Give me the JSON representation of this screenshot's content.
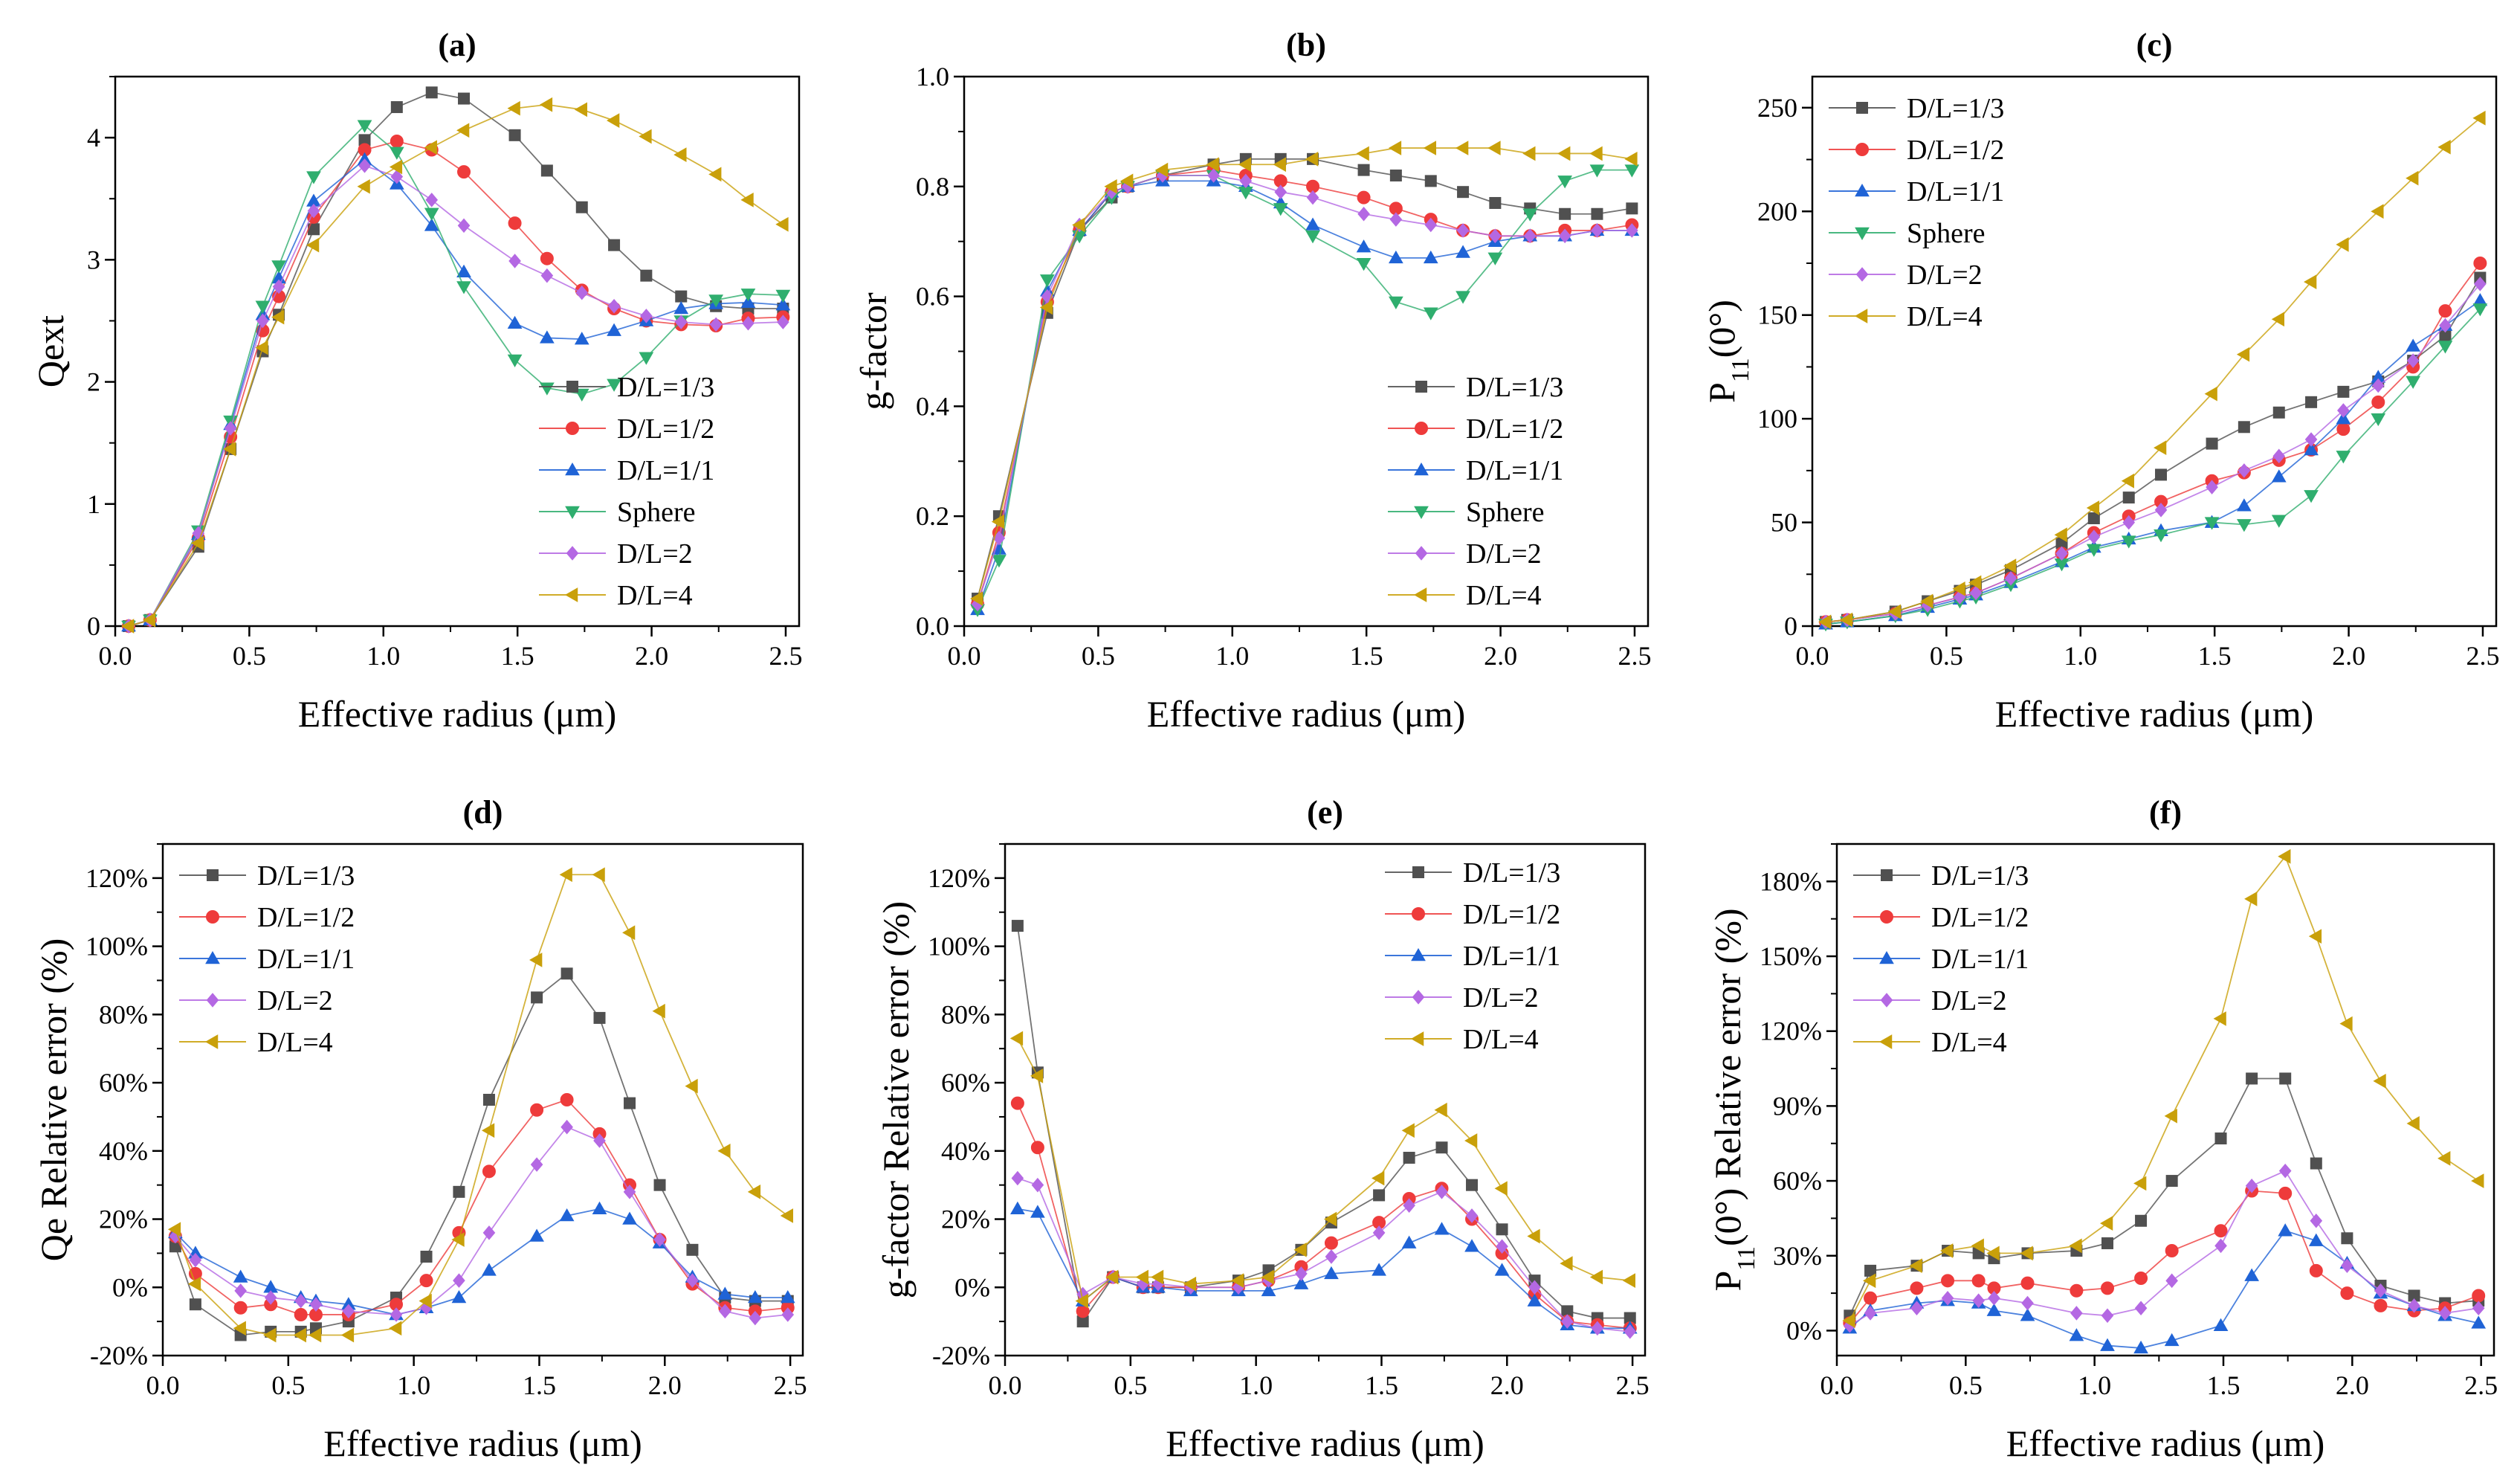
{
  "chart_data": [
    {
      "panel": "(a)",
      "type": "line",
      "xlabel": "Effective radius (μm)",
      "ylabel": "Qext",
      "xlim": [
        0,
        2.55
      ],
      "ylim": [
        0,
        4.5
      ],
      "xticks": [
        "0.0",
        "0.5",
        "1.0",
        "1.5",
        "2.0",
        "2.5"
      ],
      "yticks": [
        "0",
        "1",
        "2",
        "3",
        "4"
      ],
      "legend_position": "bottom-right",
      "x": [
        0.05,
        0.13,
        0.31,
        0.43,
        0.55,
        0.61,
        0.74,
        0.93,
        1.05,
        1.18,
        1.3,
        1.49,
        1.61,
        1.74,
        1.86,
        1.98,
        2.11,
        2.24,
        2.36,
        2.49
      ],
      "series": [
        {
          "name": "D/L=1/3",
          "values": [
            0.0,
            0.05,
            0.65,
            1.45,
            2.25,
            2.55,
            3.25,
            3.98,
            4.25,
            4.37,
            4.32,
            4.02,
            3.73,
            3.43,
            3.12,
            2.87,
            2.7,
            2.62,
            2.6,
            2.6
          ]
        },
        {
          "name": "D/L=1/2",
          "values": [
            0.0,
            0.05,
            0.72,
            1.55,
            2.42,
            2.7,
            3.35,
            3.9,
            3.97,
            3.9,
            3.72,
            3.3,
            3.01,
            2.75,
            2.6,
            2.5,
            2.47,
            2.46,
            2.52,
            2.53
          ]
        },
        {
          "name": "D/L=1/1",
          "values": [
            0.0,
            0.05,
            0.75,
            1.65,
            2.55,
            2.85,
            3.48,
            3.82,
            3.62,
            3.28,
            2.9,
            2.48,
            2.36,
            2.35,
            2.42,
            2.5,
            2.6,
            2.64,
            2.65,
            2.63
          ]
        },
        {
          "name": "Sphere",
          "values": [
            0.0,
            0.05,
            0.78,
            1.68,
            2.62,
            2.95,
            3.68,
            4.1,
            3.88,
            3.38,
            2.78,
            2.18,
            1.95,
            1.9,
            1.98,
            2.2,
            2.5,
            2.67,
            2.72,
            2.71
          ]
        },
        {
          "name": "D/L=2",
          "values": [
            0.0,
            0.05,
            0.76,
            1.62,
            2.5,
            2.78,
            3.4,
            3.77,
            3.68,
            3.49,
            3.28,
            2.99,
            2.87,
            2.73,
            2.62,
            2.54,
            2.49,
            2.47,
            2.48,
            2.49
          ]
        },
        {
          "name": "D/L=4",
          "values": [
            0.0,
            0.05,
            0.68,
            1.45,
            2.28,
            2.53,
            3.12,
            3.6,
            3.76,
            3.92,
            4.06,
            4.24,
            4.27,
            4.23,
            4.14,
            4.01,
            3.86,
            3.7,
            3.49,
            3.29
          ]
        }
      ]
    },
    {
      "panel": "(b)",
      "type": "line",
      "xlabel": "Effective radius (μm)",
      "ylabel": "g-factor",
      "xlim": [
        0,
        2.55
      ],
      "ylim": [
        0,
        1.0
      ],
      "xticks": [
        "0.0",
        "0.5",
        "1.0",
        "1.5",
        "2.0",
        "2.5"
      ],
      "yticks": [
        "0.0",
        "0.2",
        "0.4",
        "0.6",
        "0.8",
        "1.0"
      ],
      "legend_position": "bottom-right",
      "x": [
        0.05,
        0.13,
        0.31,
        0.43,
        0.55,
        0.61,
        0.74,
        0.93,
        1.05,
        1.18,
        1.3,
        1.49,
        1.61,
        1.74,
        1.86,
        1.98,
        2.11,
        2.24,
        2.36,
        2.49
      ],
      "series": [
        {
          "name": "D/L=1/3",
          "values": [
            0.05,
            0.2,
            0.57,
            0.72,
            0.78,
            0.8,
            0.82,
            0.84,
            0.85,
            0.85,
            0.85,
            0.83,
            0.82,
            0.81,
            0.79,
            0.77,
            0.76,
            0.75,
            0.75,
            0.76
          ]
        },
        {
          "name": "D/L=1/2",
          "values": [
            0.04,
            0.17,
            0.59,
            0.72,
            0.79,
            0.8,
            0.82,
            0.83,
            0.82,
            0.81,
            0.8,
            0.78,
            0.76,
            0.74,
            0.72,
            0.71,
            0.71,
            0.72,
            0.72,
            0.73
          ]
        },
        {
          "name": "D/L=1/1",
          "values": [
            0.03,
            0.14,
            0.61,
            0.72,
            0.79,
            0.8,
            0.81,
            0.81,
            0.8,
            0.77,
            0.73,
            0.69,
            0.67,
            0.67,
            0.68,
            0.7,
            0.71,
            0.71,
            0.72,
            0.72
          ]
        },
        {
          "name": "Sphere",
          "values": [
            0.03,
            0.12,
            0.63,
            0.71,
            0.78,
            0.8,
            0.82,
            0.82,
            0.79,
            0.76,
            0.71,
            0.66,
            0.59,
            0.57,
            0.6,
            0.67,
            0.75,
            0.81,
            0.83,
            0.83
          ]
        },
        {
          "name": "D/L=2",
          "values": [
            0.04,
            0.16,
            0.6,
            0.73,
            0.79,
            0.8,
            0.82,
            0.82,
            0.81,
            0.79,
            0.78,
            0.75,
            0.74,
            0.73,
            0.72,
            0.71,
            0.71,
            0.71,
            0.72,
            0.72
          ]
        },
        {
          "name": "D/L=4",
          "values": [
            0.05,
            0.19,
            0.58,
            0.73,
            0.8,
            0.81,
            0.83,
            0.84,
            0.84,
            0.84,
            0.85,
            0.86,
            0.87,
            0.87,
            0.87,
            0.87,
            0.86,
            0.86,
            0.86,
            0.85
          ]
        }
      ]
    },
    {
      "panel": "(c)",
      "type": "line",
      "xlabel": "Effective radius (μm)",
      "ylabel": "P",
      "ylabel_sub": "11",
      "ylabel_tail": "(0°)",
      "xlim": [
        0,
        2.55
      ],
      "ylim": [
        0,
        265
      ],
      "xticks": [
        "0.0",
        "0.5",
        "1.0",
        "1.5",
        "2.0",
        "2.5"
      ],
      "yticks": [
        "0",
        "50",
        "100",
        "150",
        "200",
        "250"
      ],
      "legend_position": "top-left",
      "x": [
        0.05,
        0.13,
        0.31,
        0.43,
        0.55,
        0.61,
        0.74,
        0.93,
        1.05,
        1.18,
        1.3,
        1.49,
        1.61,
        1.74,
        1.86,
        1.98,
        2.11,
        2.24,
        2.36,
        2.49
      ],
      "series": [
        {
          "name": "D/L=1/3",
          "values": [
            2,
            3,
            7,
            12,
            17,
            20,
            27,
            40,
            52,
            62,
            73,
            88,
            96,
            103,
            108,
            113,
            118,
            128,
            140,
            168
          ]
        },
        {
          "name": "D/L=1/2",
          "values": [
            2,
            3,
            6,
            10,
            14,
            16,
            23,
            35,
            45,
            53,
            60,
            70,
            74,
            80,
            85,
            95,
            108,
            125,
            152,
            175
          ]
        },
        {
          "name": "D/L=1/1",
          "values": [
            1,
            2,
            5,
            9,
            13,
            15,
            21,
            31,
            38,
            42,
            46,
            50,
            58,
            72,
            85,
            100,
            120,
            135,
            145,
            157
          ]
        },
        {
          "name": "Sphere",
          "values": [
            1,
            2,
            5,
            8,
            12,
            14,
            20,
            30,
            37,
            41,
            44,
            50,
            49,
            51,
            63,
            82,
            100,
            118,
            135,
            153
          ]
        },
        {
          "name": "D/L=2",
          "values": [
            2,
            3,
            6,
            10,
            14,
            16,
            23,
            35,
            43,
            50,
            56,
            67,
            75,
            82,
            90,
            104,
            116,
            128,
            145,
            165
          ]
        },
        {
          "name": "D/L=4",
          "values": [
            2,
            3,
            7,
            12,
            18,
            21,
            29,
            44,
            57,
            70,
            86,
            112,
            131,
            148,
            166,
            184,
            200,
            216,
            231,
            245
          ]
        }
      ]
    },
    {
      "panel": "(d)",
      "type": "line",
      "xlabel": "Effective radius (μm)",
      "ylabel": "Qe Relative error (%)",
      "xlim": [
        0,
        2.55
      ],
      "ylim": [
        -20,
        130
      ],
      "xticks": [
        "0.0",
        "0.5",
        "1.0",
        "1.5",
        "2.0",
        "2.5"
      ],
      "yticks": [
        "-20%",
        "0%",
        "20%",
        "40%",
        "60%",
        "80%",
        "100%",
        "120%"
      ],
      "legend_position": "top-left",
      "x": [
        0.05,
        0.13,
        0.31,
        0.43,
        0.55,
        0.61,
        0.74,
        0.93,
        1.05,
        1.18,
        1.3,
        1.49,
        1.61,
        1.74,
        1.86,
        1.98,
        2.11,
        2.24,
        2.36,
        2.49
      ],
      "series": [
        {
          "name": "D/L=1/3",
          "values": [
            12,
            -5,
            -14,
            -13,
            -13,
            -12,
            -10,
            -3,
            9,
            28,
            55,
            85,
            92,
            79,
            54,
            30,
            11,
            -3,
            -4,
            -4
          ]
        },
        {
          "name": "D/L=1/2",
          "values": [
            15,
            4,
            -6,
            -5,
            -8,
            -8,
            -8,
            -5,
            2,
            16,
            34,
            52,
            55,
            45,
            30,
            14,
            1,
            -6,
            -7,
            -6
          ]
        },
        {
          "name": "D/L=1/1",
          "values": [
            16,
            10,
            3,
            0,
            -3,
            -4,
            -5,
            -8,
            -6,
            -3,
            5,
            15,
            21,
            23,
            20,
            13,
            3,
            -2,
            -3,
            -3
          ]
        },
        {
          "name": "D/L=2",
          "values": [
            15,
            8,
            -1,
            -3,
            -4,
            -5,
            -7,
            -8,
            -6,
            2,
            16,
            36,
            47,
            43,
            28,
            14,
            2,
            -7,
            -9,
            -8
          ]
        },
        {
          "name": "D/L=4",
          "values": [
            17,
            1,
            -12,
            -14,
            -14,
            -14,
            -14,
            -12,
            -4,
            14,
            46,
            96,
            121,
            121,
            104,
            81,
            59,
            40,
            28,
            21
          ]
        }
      ]
    },
    {
      "panel": "(e)",
      "type": "line",
      "xlabel": "Effective radius (μm)",
      "ylabel": "g-factor Relative error (%)",
      "xlim": [
        0,
        2.55
      ],
      "ylim": [
        -20,
        130
      ],
      "xticks": [
        "0.0",
        "0.5",
        "1.0",
        "1.5",
        "2.0",
        "2.5"
      ],
      "yticks": [
        "-20%",
        "0%",
        "20%",
        "40%",
        "60%",
        "80%",
        "100%",
        "120%"
      ],
      "legend_position": "top-right",
      "x": [
        0.05,
        0.13,
        0.31,
        0.43,
        0.55,
        0.61,
        0.74,
        0.93,
        1.05,
        1.18,
        1.3,
        1.49,
        1.61,
        1.74,
        1.86,
        1.98,
        2.11,
        2.24,
        2.36,
        2.49
      ],
      "series": [
        {
          "name": "D/L=1/3",
          "values": [
            106,
            63,
            -10,
            3,
            0,
            0,
            0,
            2,
            5,
            11,
            19,
            27,
            38,
            41,
            30,
            17,
            2,
            -7,
            -9,
            -9
          ]
        },
        {
          "name": "D/L=1/2",
          "values": [
            54,
            41,
            -7,
            3,
            0,
            0,
            0,
            0,
            2,
            6,
            13,
            19,
            26,
            29,
            20,
            10,
            -2,
            -10,
            -11,
            -12
          ]
        },
        {
          "name": "D/L=1/1",
          "values": [
            23,
            22,
            -4,
            3,
            0,
            0,
            -1,
            -1,
            -1,
            1,
            4,
            5,
            13,
            17,
            12,
            5,
            -4,
            -11,
            -12,
            -12
          ]
        },
        {
          "name": "D/L=2",
          "values": [
            32,
            30,
            -2,
            3,
            1,
            1,
            0,
            0,
            2,
            4,
            9,
            16,
            24,
            28,
            21,
            12,
            0,
            -10,
            -12,
            -13
          ]
        },
        {
          "name": "D/L=4",
          "values": [
            73,
            62,
            -4,
            3,
            3,
            3,
            1,
            2,
            3,
            11,
            20,
            32,
            46,
            52,
            43,
            29,
            15,
            7,
            3,
            2
          ]
        }
      ]
    },
    {
      "panel": "(f)",
      "type": "line",
      "xlabel": "Effective radius (μm)",
      "ylabel": "P",
      "ylabel_sub": "11",
      "ylabel_tail": "(0°) Relative error (%)",
      "xlim": [
        0,
        2.55
      ],
      "ylim": [
        -10,
        195
      ],
      "xticks": [
        "0.0",
        "0.5",
        "1.0",
        "1.5",
        "2.0",
        "2.5"
      ],
      "yticks": [
        "0%",
        "30%",
        "60%",
        "90%",
        "120%",
        "150%",
        "180%"
      ],
      "legend_position": "top-left",
      "x": [
        0.05,
        0.13,
        0.31,
        0.43,
        0.55,
        0.61,
        0.74,
        0.93,
        1.05,
        1.18,
        1.3,
        1.49,
        1.61,
        1.74,
        1.86,
        1.98,
        2.11,
        2.24,
        2.36,
        2.49
      ],
      "series": [
        {
          "name": "D/L=1/3",
          "values": [
            6,
            24,
            26,
            32,
            31,
            29,
            31,
            32,
            35,
            44,
            60,
            77,
            101,
            101,
            67,
            37,
            18,
            14,
            11,
            12
          ]
        },
        {
          "name": "D/L=1/2",
          "values": [
            3,
            13,
            17,
            20,
            20,
            17,
            19,
            16,
            17,
            21,
            32,
            40,
            56,
            55,
            24,
            15,
            10,
            8,
            9,
            14
          ]
        },
        {
          "name": "D/L=1/1",
          "values": [
            1,
            8,
            11,
            12,
            11,
            8,
            6,
            -2,
            -6,
            -7,
            -4,
            2,
            22,
            40,
            36,
            27,
            15,
            10,
            6,
            3
          ]
        },
        {
          "name": "D/L=2",
          "values": [
            2,
            7,
            9,
            13,
            12,
            13,
            11,
            7,
            6,
            9,
            20,
            34,
            58,
            64,
            44,
            26,
            16,
            10,
            7,
            9
          ]
        },
        {
          "name": "D/L=4",
          "values": [
            4,
            20,
            26,
            32,
            34,
            31,
            31,
            34,
            43,
            59,
            86,
            125,
            173,
            190,
            158,
            123,
            100,
            83,
            69,
            60
          ]
        }
      ]
    }
  ],
  "styles": {
    "D/L=1/3": {
      "color": "#505050",
      "marker": "square"
    },
    "D/L=1/2": {
      "color": "#ee3b3b",
      "marker": "circle"
    },
    "D/L=1/1": {
      "color": "#1f63d6",
      "marker": "triangle-up"
    },
    "Sphere": {
      "color": "#2fae6e",
      "marker": "triangle-down"
    },
    "D/L=2": {
      "color": "#b468e3",
      "marker": "diamond"
    },
    "D/L=4": {
      "color": "#c9a00a",
      "marker": "triangle-left"
    }
  }
}
